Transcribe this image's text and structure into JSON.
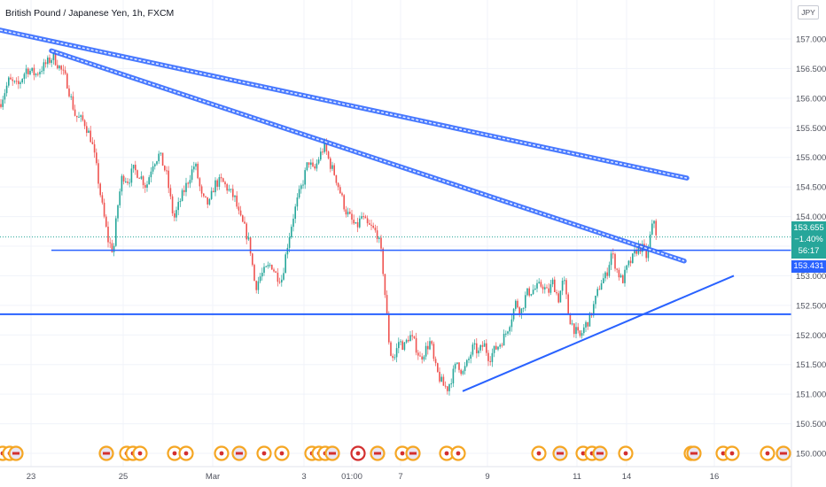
{
  "header": {
    "symbol_title": "British Pound / Japanese Yen, 1h, FXCM",
    "currency_button": "JPY"
  },
  "price_tags": {
    "last_price": "153.655",
    "change_percent": "−1.40%",
    "bar_countdown": "56:17",
    "level_price": "153.431"
  },
  "colors": {
    "up": "#26a69a",
    "down": "#ef5350",
    "trendline": "#2962ff",
    "grid": "#f0f3fa",
    "axis_text": "#50535e"
  },
  "chart_data": {
    "type": "candlestick",
    "title": "British Pound / Japanese Yen, 1h, FXCM",
    "xlabel": "",
    "ylabel": "",
    "ylim": [
      149.75,
      157.45
    ],
    "yticks": [
      150.0,
      150.5,
      151.0,
      151.5,
      152.0,
      152.5,
      153.0,
      153.5,
      154.0,
      154.5,
      155.0,
      155.5,
      156.0,
      156.5,
      157.0
    ],
    "ytick_labels": [
      "150.000",
      "150.500",
      "151.000",
      "151.500",
      "152.000",
      "152.500",
      "153.000",
      "153.500",
      "154.000",
      "154.500",
      "155.000",
      "155.500",
      "156.000",
      "156.500",
      "157.000"
    ],
    "xticks": [
      "23",
      "25",
      "Mar",
      "3",
      "01:00",
      "7",
      "9",
      "11",
      "14",
      "16"
    ],
    "grid": true,
    "price_path": [
      [
        0,
        155.9
      ],
      [
        10,
        156.3
      ],
      [
        20,
        156.2
      ],
      [
        30,
        156.5
      ],
      [
        40,
        156.4
      ],
      [
        50,
        156.55
      ],
      [
        60,
        156.7
      ],
      [
        68,
        156.5
      ],
      [
        75,
        156.3
      ],
      [
        85,
        155.7
      ],
      [
        95,
        155.6
      ],
      [
        103,
        155.3
      ],
      [
        108,
        154.9
      ],
      [
        115,
        154.2
      ],
      [
        122,
        153.6
      ],
      [
        128,
        153.4
      ],
      [
        132,
        154.1
      ],
      [
        138,
        154.7
      ],
      [
        145,
        154.6
      ],
      [
        150,
        154.8
      ],
      [
        158,
        154.7
      ],
      [
        165,
        154.5
      ],
      [
        172,
        154.9
      ],
      [
        180,
        155.05
      ],
      [
        188,
        154.7
      ],
      [
        196,
        153.95
      ],
      [
        204,
        154.3
      ],
      [
        212,
        154.6
      ],
      [
        220,
        154.9
      ],
      [
        228,
        154.3
      ],
      [
        236,
        154.2
      ],
      [
        242,
        154.55
      ],
      [
        250,
        154.6
      ],
      [
        258,
        154.45
      ],
      [
        265,
        154.3
      ],
      [
        270,
        154.0
      ],
      [
        276,
        153.8
      ],
      [
        282,
        153.5
      ],
      [
        288,
        152.8
      ],
      [
        294,
        153.0
      ],
      [
        300,
        153.1
      ],
      [
        306,
        153.2
      ],
      [
        312,
        153.0
      ],
      [
        318,
        152.95
      ],
      [
        324,
        153.5
      ],
      [
        330,
        153.95
      ],
      [
        336,
        154.3
      ],
      [
        342,
        154.6
      ],
      [
        348,
        154.95
      ],
      [
        354,
        154.75
      ],
      [
        360,
        155.0
      ],
      [
        366,
        155.2
      ],
      [
        372,
        154.9
      ],
      [
        378,
        154.7
      ],
      [
        384,
        154.4
      ],
      [
        390,
        154.1
      ],
      [
        396,
        153.95
      ],
      [
        402,
        153.8
      ],
      [
        408,
        154.0
      ],
      [
        414,
        153.85
      ],
      [
        420,
        153.8
      ],
      [
        426,
        153.7
      ],
      [
        431,
        153.3
      ],
      [
        436,
        152.4
      ],
      [
        440,
        151.7
      ],
      [
        445,
        151.6
      ],
      [
        450,
        151.9
      ],
      [
        456,
        151.8
      ],
      [
        462,
        152.0
      ],
      [
        468,
        151.85
      ],
      [
        474,
        151.6
      ],
      [
        480,
        151.75
      ],
      [
        486,
        151.9
      ],
      [
        490,
        151.5
      ],
      [
        495,
        151.3
      ],
      [
        500,
        151.15
      ],
      [
        505,
        151.1
      ],
      [
        510,
        151.3
      ],
      [
        516,
        151.55
      ],
      [
        522,
        151.35
      ],
      [
        528,
        151.55
      ],
      [
        534,
        151.8
      ],
      [
        540,
        151.7
      ],
      [
        546,
        151.85
      ],
      [
        552,
        151.6
      ],
      [
        558,
        151.75
      ],
      [
        564,
        151.85
      ],
      [
        570,
        152.0
      ],
      [
        576,
        152.25
      ],
      [
        582,
        152.55
      ],
      [
        588,
        152.4
      ],
      [
        594,
        152.7
      ],
      [
        600,
        152.75
      ],
      [
        606,
        152.8
      ],
      [
        612,
        152.85
      ],
      [
        618,
        152.7
      ],
      [
        624,
        152.9
      ],
      [
        630,
        152.6
      ],
      [
        636,
        152.95
      ],
      [
        642,
        152.3
      ],
      [
        648,
        152.1
      ],
      [
        654,
        151.95
      ],
      [
        660,
        152.15
      ],
      [
        666,
        152.3
      ],
      [
        672,
        152.6
      ],
      [
        678,
        152.9
      ],
      [
        684,
        153.0
      ],
      [
        690,
        153.4
      ],
      [
        696,
        153.1
      ],
      [
        702,
        152.9
      ],
      [
        708,
        153.15
      ],
      [
        714,
        153.3
      ],
      [
        720,
        153.5
      ],
      [
        726,
        153.45
      ],
      [
        730,
        153.3
      ],
      [
        734,
        153.7
      ],
      [
        738,
        153.95
      ],
      [
        741,
        153.655
      ]
    ],
    "trendlines": [
      {
        "name": "upper_channel_top",
        "points": [
          [
            0,
            157.15
          ],
          [
            775,
            154.65
          ]
        ],
        "style": "double"
      },
      {
        "name": "lower_channel",
        "points": [
          [
            58,
            156.8
          ],
          [
            772,
            153.25
          ]
        ],
        "style": "double"
      },
      {
        "name": "rising_support",
        "points": [
          [
            522,
            151.05
          ],
          [
            828,
            153.0
          ]
        ],
        "style": "solid"
      }
    ],
    "horizontal_levels": [
      153.431,
      152.35
    ],
    "last_price": 153.655
  }
}
